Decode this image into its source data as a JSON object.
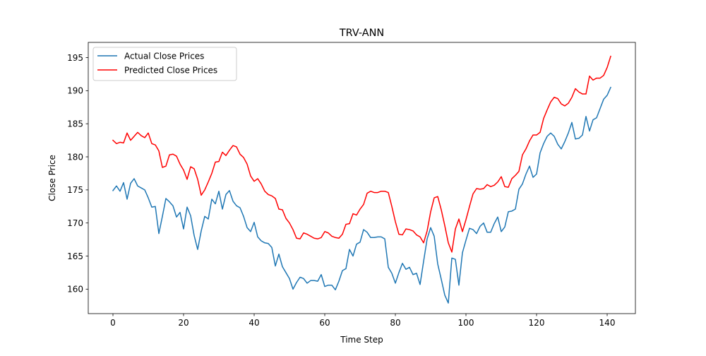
{
  "chart_data": {
    "type": "line",
    "title": "TRV-ANN",
    "xlabel": "Time Step",
    "ylabel": "Close Price",
    "xlim": [
      -7,
      148
    ],
    "ylim": [
      156.3,
      197.3
    ],
    "xticks": [
      0,
      20,
      40,
      60,
      80,
      100,
      120,
      140
    ],
    "yticks": [
      160,
      165,
      170,
      175,
      180,
      185,
      190,
      195
    ],
    "grid": false,
    "legend_position": "upper-left",
    "series": [
      {
        "name": "Actual Close Prices",
        "color": "#1f77b4",
        "values": [
          174.9,
          175.6,
          174.8,
          176.1,
          173.6,
          176.0,
          176.7,
          175.6,
          175.3,
          175.0,
          173.8,
          172.4,
          172.5,
          168.4,
          171.0,
          173.7,
          173.2,
          172.6,
          170.9,
          171.6,
          169.1,
          172.4,
          171.1,
          168.1,
          166.0,
          168.8,
          171.0,
          170.6,
          173.6,
          172.9,
          174.8,
          172.1,
          174.3,
          174.9,
          173.3,
          172.6,
          172.3,
          171.0,
          169.3,
          168.7,
          170.1,
          167.9,
          167.3,
          167.0,
          166.9,
          166.3,
          163.5,
          165.3,
          163.4,
          162.5,
          161.6,
          160.0,
          161.0,
          161.8,
          161.6,
          160.9,
          161.3,
          161.3,
          161.2,
          162.2,
          160.4,
          160.6,
          160.6,
          159.9,
          161.2,
          162.8,
          163.1,
          166.0,
          165.0,
          166.8,
          167.1,
          169.0,
          168.6,
          167.8,
          167.8,
          167.9,
          167.9,
          167.6,
          163.3,
          162.4,
          160.9,
          162.5,
          163.9,
          163.0,
          163.3,
          162.2,
          162.4,
          160.7,
          164.2,
          167.6,
          169.3,
          168.0,
          163.8,
          161.5,
          159.1,
          157.9,
          164.7,
          164.5,
          160.6,
          165.5,
          167.4,
          169.2,
          169.0,
          168.4,
          169.5,
          170.0,
          168.6,
          168.6,
          169.9,
          170.9,
          168.7,
          169.4,
          171.7,
          171.8,
          172.1,
          175.1,
          175.9,
          177.4,
          178.6,
          176.9,
          177.4,
          180.6,
          182.0,
          183.1,
          183.6,
          183.1,
          181.9,
          181.2,
          182.3,
          183.6,
          185.2,
          182.7,
          182.8,
          183.3,
          186.1,
          183.9,
          185.6,
          185.9,
          187.3,
          188.7,
          189.3,
          190.5
        ]
      },
      {
        "name": "Predicted Close Prices",
        "color": "#ff0000",
        "values": [
          182.5,
          182.0,
          182.2,
          182.1,
          183.6,
          182.5,
          183.1,
          183.7,
          183.2,
          182.9,
          183.6,
          182.0,
          181.8,
          180.9,
          178.4,
          178.6,
          180.3,
          180.4,
          180.1,
          178.9,
          178.0,
          176.6,
          178.5,
          178.2,
          176.6,
          174.2,
          175.0,
          176.2,
          177.5,
          179.2,
          179.3,
          180.7,
          180.2,
          181.0,
          181.7,
          181.5,
          180.4,
          179.9,
          178.9,
          177.1,
          176.3,
          176.7,
          175.9,
          174.8,
          174.3,
          174.1,
          173.7,
          172.1,
          172.0,
          170.7,
          170.0,
          169.0,
          167.7,
          167.6,
          168.5,
          168.3,
          168.0,
          167.7,
          167.6,
          167.8,
          168.7,
          168.5,
          168.0,
          167.8,
          167.7,
          168.3,
          169.8,
          169.9,
          171.4,
          171.2,
          172.1,
          172.8,
          174.5,
          174.8,
          174.6,
          174.6,
          174.8,
          174.8,
          174.6,
          172.5,
          170.2,
          168.3,
          168.2,
          169.1,
          169.0,
          168.8,
          168.2,
          167.9,
          167.0,
          168.8,
          171.7,
          173.8,
          174.0,
          172.0,
          169.6,
          167.0,
          165.6,
          169.1,
          170.6,
          168.7,
          170.5,
          172.5,
          174.4,
          175.2,
          175.1,
          175.2,
          175.8,
          175.5,
          175.7,
          176.2,
          177.0,
          175.5,
          175.4,
          176.7,
          177.2,
          177.8,
          180.3,
          181.2,
          182.4,
          183.3,
          183.3,
          183.7,
          185.8,
          187.1,
          188.3,
          189.0,
          188.8,
          188.0,
          187.7,
          188.1,
          189.0,
          190.3,
          189.8,
          189.5,
          189.5,
          192.2,
          191.6,
          191.9,
          191.9,
          192.3,
          193.5,
          195.2
        ]
      }
    ]
  }
}
